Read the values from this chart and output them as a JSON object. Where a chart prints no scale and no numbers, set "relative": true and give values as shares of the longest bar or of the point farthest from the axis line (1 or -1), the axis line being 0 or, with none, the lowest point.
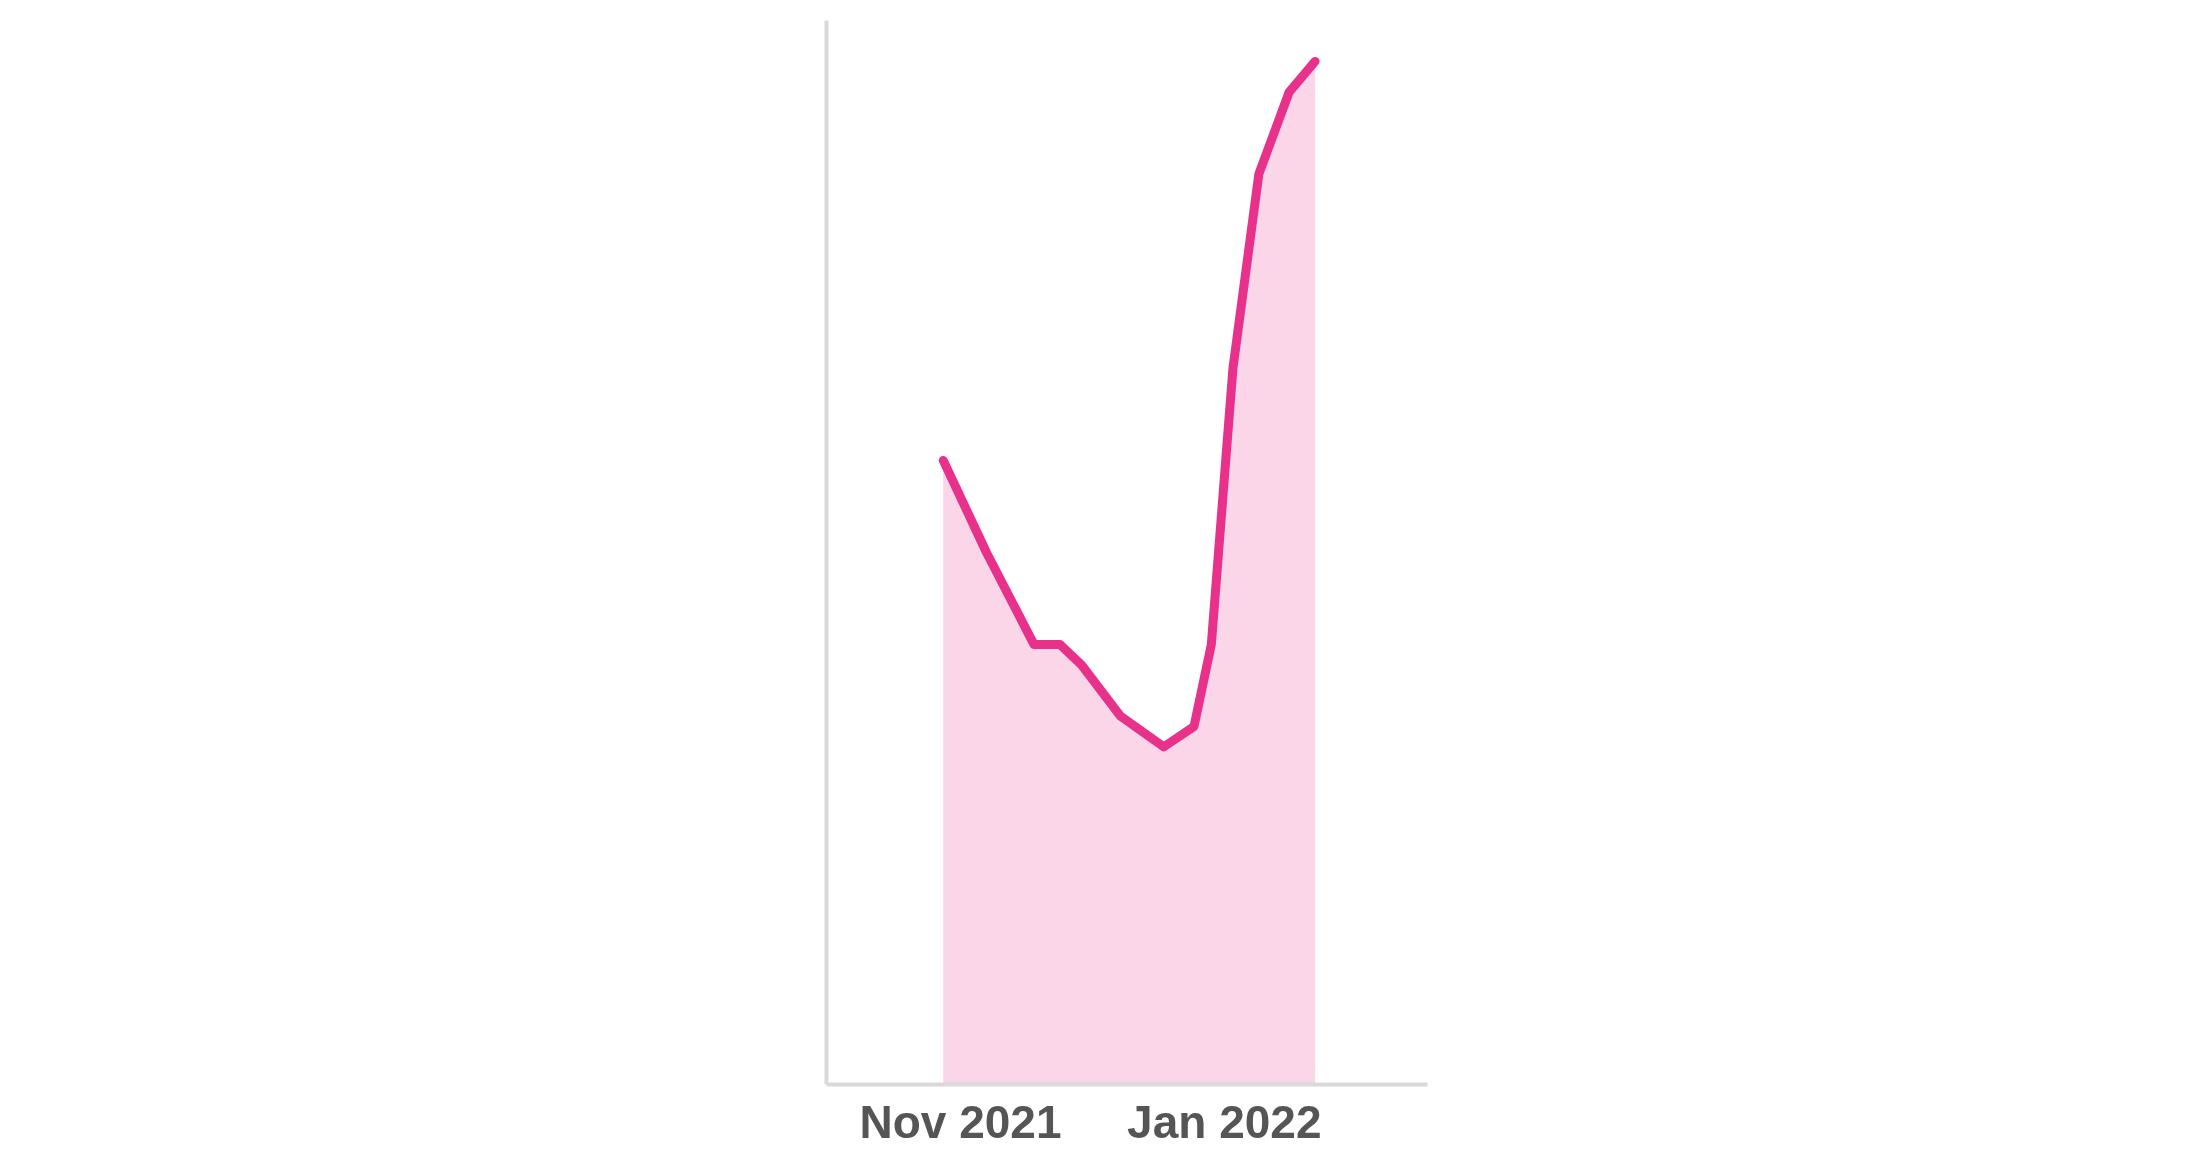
{
  "chart_data": {
    "type": "area",
    "relative": true,
    "color": "#e8318a",
    "x": [
      "2021-10-28",
      "2021-11-07",
      "2021-11-18",
      "2021-11-24",
      "2021-11-29",
      "2021-12-08",
      "2021-12-18",
      "2021-12-25",
      "2021-12-29",
      "2022-01-03",
      "2022-01-09",
      "2022-01-16",
      "2022-01-22"
    ],
    "values": [
      0.61,
      0.52,
      0.43,
      0.43,
      0.41,
      0.36,
      0.33,
      0.35,
      0.43,
      0.7,
      0.89,
      0.97,
      1.0
    ],
    "xlim": [
      "2021-10-01",
      "2022-02-17"
    ],
    "xticks": [
      {
        "value": "2021-11-01",
        "label": "Nov 2021"
      },
      {
        "value": "2022-01-01",
        "label": "Jan 2022"
      }
    ],
    "tick_labels": "x"
  }
}
